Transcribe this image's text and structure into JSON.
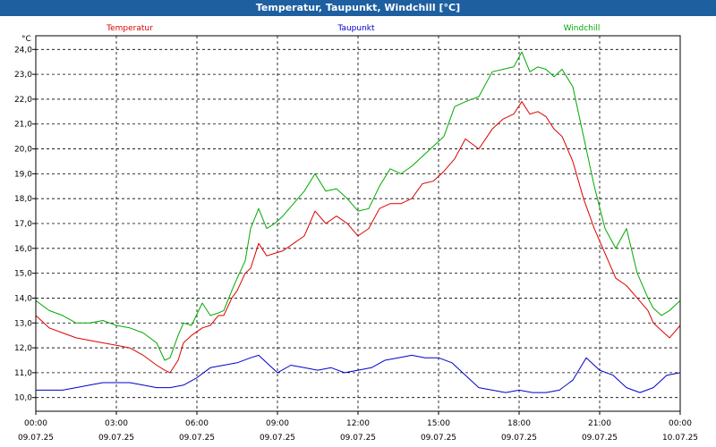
{
  "window": {
    "title": "Temperatur, Taupunkt, Windchill [°C]"
  },
  "chart_data": {
    "type": "line",
    "title": "Temperatur, Taupunkt, Windchill [°C]",
    "ylabel": "°C",
    "xlabel": "",
    "ylim": [
      9.45,
      24.55
    ],
    "xlim": [
      0,
      24
    ],
    "grid": true,
    "legend_placement": "top",
    "y_ticks": [
      "10,0",
      "11,0",
      "12,0",
      "13,0",
      "14,0",
      "15,0",
      "16,0",
      "17,0",
      "18,0",
      "19,0",
      "20,0",
      "21,0",
      "22,0",
      "23,0",
      "24,0"
    ],
    "x_ticks": [
      {
        "time": "00:00",
        "date": "09.07.25"
      },
      {
        "time": "03:00",
        "date": "09.07.25"
      },
      {
        "time": "06:00",
        "date": "09.07.25"
      },
      {
        "time": "09:00",
        "date": "09.07.25"
      },
      {
        "time": "12:00",
        "date": "09.07.25"
      },
      {
        "time": "15:00",
        "date": "09.07.25"
      },
      {
        "time": "18:00",
        "date": "09.07.25"
      },
      {
        "time": "21:00",
        "date": "09.07.25"
      },
      {
        "time": "00:00",
        "date": "10.07.25"
      }
    ],
    "series": [
      {
        "name": "Temperatur",
        "color": "#dd0000",
        "x": [
          0,
          0.5,
          1,
          1.5,
          2,
          2.5,
          3,
          3.5,
          4,
          4.5,
          4.8,
          5,
          5.3,
          5.5,
          5.8,
          6.2,
          6.5,
          6.8,
          7,
          7.3,
          7.5,
          7.8,
          8,
          8.3,
          8.6,
          8.9,
          9.2,
          9.6,
          10,
          10.4,
          10.8,
          11.2,
          11.6,
          12,
          12.4,
          12.8,
          13.2,
          13.6,
          14,
          14.4,
          14.8,
          15.2,
          15.6,
          16,
          16.5,
          17,
          17.4,
          17.8,
          18.1,
          18.4,
          18.7,
          19,
          19.3,
          19.6,
          20,
          20.4,
          20.8,
          21.2,
          21.6,
          22,
          22.4,
          22.8,
          23,
          23.3,
          23.6,
          24
        ],
        "values": [
          13.3,
          12.8,
          12.6,
          12.4,
          12.3,
          12.2,
          12.1,
          12.0,
          11.7,
          11.3,
          11.1,
          11.0,
          11.5,
          12.2,
          12.5,
          12.8,
          12.9,
          13.3,
          13.3,
          14.0,
          14.3,
          15.0,
          15.2,
          16.2,
          15.7,
          15.8,
          15.9,
          16.2,
          16.5,
          17.5,
          17.0,
          17.3,
          17.0,
          16.5,
          16.8,
          17.6,
          17.8,
          17.8,
          18.0,
          18.6,
          18.7,
          19.1,
          19.6,
          20.4,
          20.0,
          20.8,
          21.2,
          21.4,
          21.9,
          21.4,
          21.5,
          21.3,
          20.8,
          20.5,
          19.5,
          18.0,
          16.8,
          15.8,
          14.8,
          14.5,
          14.0,
          13.5,
          13.0,
          12.7,
          12.4,
          12.9
        ]
      },
      {
        "name": "Taupunkt",
        "color": "#0000cc",
        "x": [
          0,
          0.5,
          1,
          1.5,
          2,
          2.5,
          3,
          3.5,
          4,
          4.5,
          5,
          5.5,
          6,
          6.5,
          7,
          7.5,
          8,
          8.3,
          8.6,
          9,
          9.5,
          10,
          10.5,
          11,
          11.5,
          12,
          12.5,
          13,
          13.5,
          14,
          14.5,
          15,
          15.5,
          16,
          16.5,
          17,
          17.5,
          18,
          18.5,
          19,
          19.5,
          20,
          20.5,
          21,
          21.5,
          22,
          22.5,
          23,
          23.5,
          24
        ],
        "values": [
          10.3,
          10.3,
          10.3,
          10.4,
          10.5,
          10.6,
          10.6,
          10.6,
          10.5,
          10.4,
          10.4,
          10.5,
          10.8,
          11.2,
          11.3,
          11.4,
          11.6,
          11.7,
          11.4,
          11.0,
          11.3,
          11.2,
          11.1,
          11.2,
          11.0,
          11.1,
          11.2,
          11.5,
          11.6,
          11.7,
          11.6,
          11.6,
          11.4,
          10.9,
          10.4,
          10.3,
          10.2,
          10.3,
          10.2,
          10.2,
          10.3,
          10.7,
          11.6,
          11.1,
          10.9,
          10.4,
          10.2,
          10.4,
          10.9,
          11.0
        ]
      },
      {
        "name": "Windchill",
        "color": "#00aa00",
        "x": [
          0,
          0.5,
          1,
          1.5,
          2,
          2.5,
          3,
          3.5,
          4,
          4.5,
          4.8,
          5,
          5.3,
          5.5,
          5.8,
          6.2,
          6.5,
          6.8,
          7,
          7.3,
          7.5,
          7.8,
          8,
          8.3,
          8.6,
          8.9,
          9.2,
          9.6,
          10,
          10.4,
          10.8,
          11.2,
          11.6,
          12,
          12.4,
          12.8,
          13.2,
          13.6,
          14,
          14.4,
          14.8,
          15.2,
          15.6,
          16,
          16.5,
          17,
          17.4,
          17.8,
          18.1,
          18.4,
          18.7,
          19,
          19.3,
          19.6,
          20,
          20.4,
          20.8,
          21.2,
          21.6,
          22,
          22.4,
          22.8,
          23,
          23.3,
          23.6,
          24
        ],
        "values": [
          13.9,
          13.5,
          13.3,
          13.0,
          13.0,
          13.1,
          12.9,
          12.8,
          12.6,
          12.2,
          11.5,
          11.6,
          12.5,
          13.0,
          12.9,
          13.8,
          13.3,
          13.4,
          13.5,
          14.3,
          14.8,
          15.5,
          16.8,
          17.6,
          16.8,
          17.0,
          17.3,
          17.8,
          18.3,
          19.0,
          18.3,
          18.4,
          18.0,
          17.5,
          17.6,
          18.5,
          19.2,
          19.0,
          19.3,
          19.7,
          20.1,
          20.5,
          21.7,
          21.9,
          22.1,
          23.1,
          23.2,
          23.3,
          23.9,
          23.1,
          23.3,
          23.2,
          22.9,
          23.2,
          22.5,
          20.5,
          18.5,
          16.8,
          16.0,
          16.8,
          15.0,
          14.0,
          13.6,
          13.3,
          13.5,
          13.9
        ]
      }
    ]
  }
}
